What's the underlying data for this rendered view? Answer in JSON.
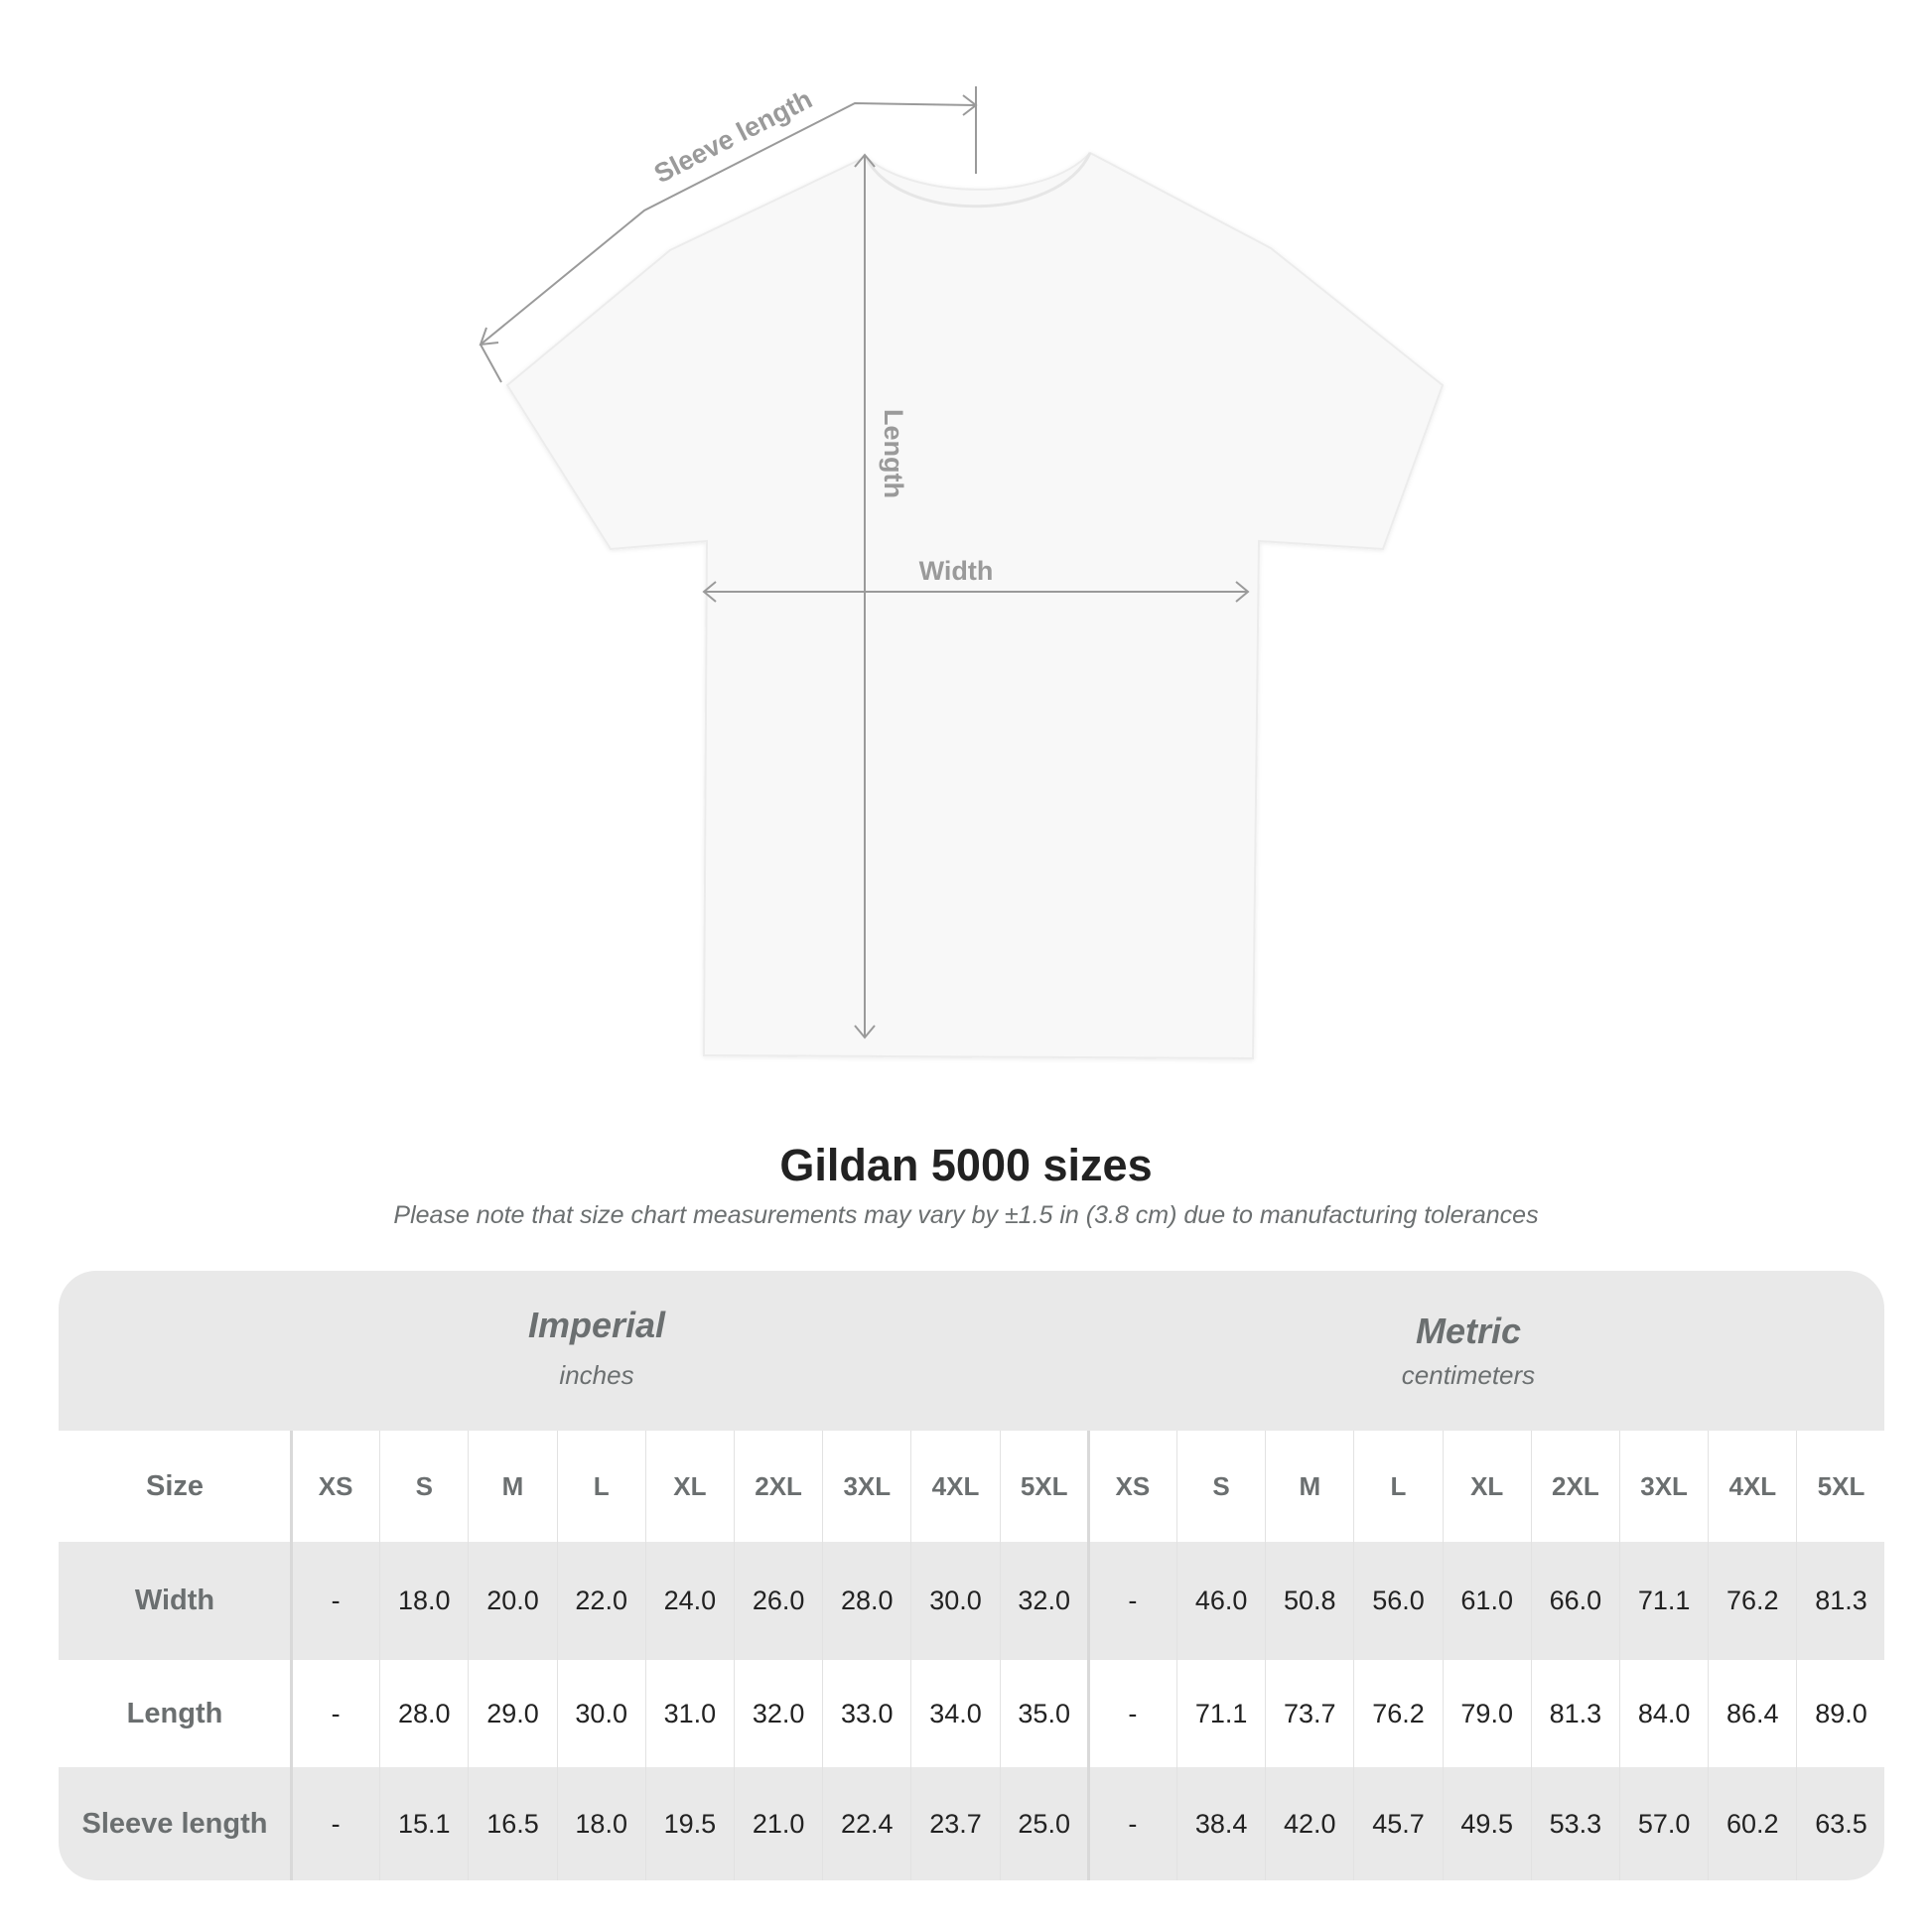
{
  "diagram": {
    "labels": {
      "sleeve_length": "Sleeve length",
      "length": "Length",
      "width": "Width"
    },
    "shirt_color": "#f8f8f8",
    "line_color": "#9a9a9a"
  },
  "title": "Gildan 5000 sizes",
  "note": "Please note that size chart measurements may vary by ±1.5 in (3.8 cm) due to manufacturing tolerances",
  "table": {
    "imperial": {
      "name": "Imperial",
      "unit": "inches"
    },
    "metric": {
      "name": "Metric",
      "unit": "centimeters"
    },
    "size_label": "Size",
    "sizes": [
      "XS",
      "S",
      "M",
      "L",
      "XL",
      "2XL",
      "3XL",
      "4XL",
      "5XL"
    ],
    "rows": [
      {
        "label": "Width",
        "imperial": [
          "-",
          "18.0",
          "20.0",
          "22.0",
          "24.0",
          "26.0",
          "28.0",
          "30.0",
          "32.0"
        ],
        "metric": [
          "-",
          "46.0",
          "50.8",
          "56.0",
          "61.0",
          "66.0",
          "71.1",
          "76.2",
          "81.3"
        ]
      },
      {
        "label": "Length",
        "imperial": [
          "-",
          "28.0",
          "29.0",
          "30.0",
          "31.0",
          "32.0",
          "33.0",
          "34.0",
          "35.0"
        ],
        "metric": [
          "-",
          "71.1",
          "73.7",
          "76.2",
          "79.0",
          "81.3",
          "84.0",
          "86.4",
          "89.0"
        ]
      },
      {
        "label": "Sleeve length",
        "imperial": [
          "-",
          "15.1",
          "16.5",
          "18.0",
          "19.5",
          "21.0",
          "22.4",
          "23.7",
          "25.0"
        ],
        "metric": [
          "-",
          "38.4",
          "42.0",
          "45.7",
          "49.5",
          "53.3",
          "57.0",
          "60.2",
          "63.5"
        ]
      }
    ],
    "colors": {
      "band": "#e9e9e9",
      "label_text": "#6b6f70",
      "value_text": "#222222"
    }
  }
}
